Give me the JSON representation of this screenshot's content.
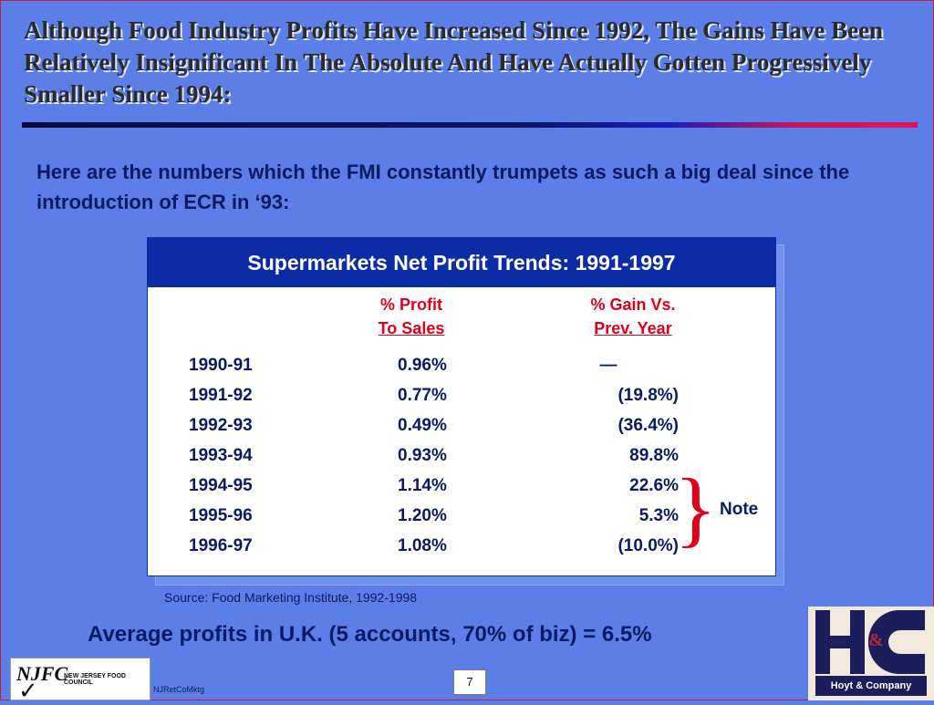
{
  "slide": {
    "title": "Although Food Industry Profits Have Increased Since 1992, The Gains Have Been Relatively Insignificant In The Absolute And Have Actually Gotten Progressively Smaller Since 1994:",
    "intro": "Here are the numbers which the FMI constantly trumpets as such a big deal since the introduction of ECR in ‘93:",
    "source": "Source:  Food Marketing Institute, 1992-1998",
    "average_note": "Average profits in U.K. (5 accounts, 70% of biz) = 6.5%",
    "footer_code": "NJRetCoMktg",
    "page_number": "7"
  },
  "table": {
    "title": "Supermarkets Net Profit Trends:  1991-1997",
    "col_profit_line1": "% Profit",
    "col_profit_line2": "To Sales",
    "col_gain_line1": "% Gain Vs.",
    "col_gain_line2": "Prev. Year",
    "rows": [
      {
        "year": "1990-91",
        "profit": "0.96%",
        "gain": "—"
      },
      {
        "year": "1991-92",
        "profit": "0.77%",
        "gain": "(19.8%)"
      },
      {
        "year": "1992-93",
        "profit": "0.49%",
        "gain": "(36.4%)"
      },
      {
        "year": "1993-94",
        "profit": "0.93%",
        "gain": "89.8%"
      },
      {
        "year": "1994-95",
        "profit": "1.14%",
        "gain": "22.6%"
      },
      {
        "year": "1995-96",
        "profit": "1.20%",
        "gain": "5.3%"
      },
      {
        "year": "1996-97",
        "profit": "1.08%",
        "gain": "(10.0%)"
      }
    ],
    "brace_symbol": "}",
    "brace_note": "Note"
  },
  "logos": {
    "njfc_mark": "NJFC",
    "njfc_name": "NEW JERSEY FOOD COUNCIL",
    "hc_amp": "&",
    "hc_name": "Hoyt & Company"
  },
  "colors": {
    "background": "#5b7fe6",
    "table_header": "#0a2ca4",
    "accent_red": "#e0001a",
    "text_navy": "#0b1a66"
  }
}
